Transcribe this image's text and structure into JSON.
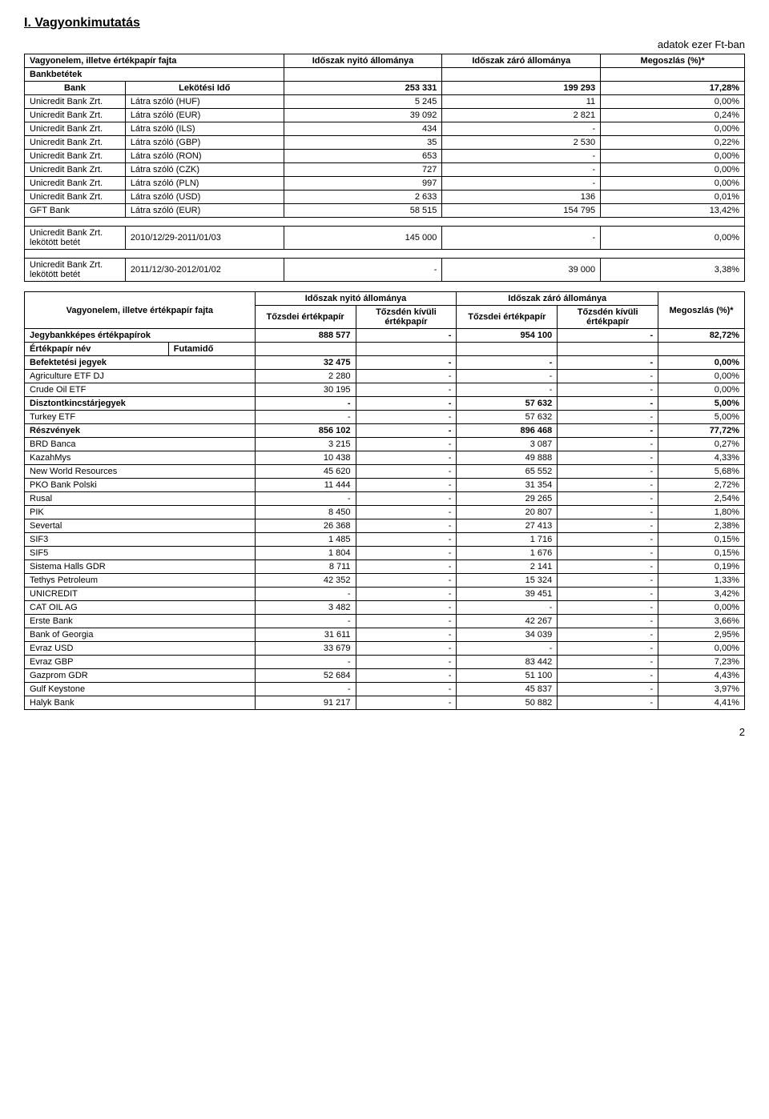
{
  "section_title": "I.   Vagyonkimutatás",
  "subtitle": "adatok ezer Ft-ban",
  "page_number": "2",
  "top_table": {
    "headers": [
      "Vagyonelem, illetve értékpapír fajta",
      "Időszak nyitó állománya",
      "Időszak záró állománya",
      "Megoszlás (%)*"
    ],
    "bank_header": "Bankbetétek",
    "col_bank": "Bank",
    "col_lekotesi": "Lekötési Idő",
    "sum_row": {
      "c1": "253 331",
      "c2": "199 293",
      "c3": "17,28%"
    },
    "rows": [
      {
        "bank": "Unicredit Bank Zrt.",
        "kind": "Látra szóló (HUF)",
        "v1": "5 245",
        "v2": "11",
        "v3": "0,00%"
      },
      {
        "bank": "Unicredit Bank Zrt.",
        "kind": "Látra szóló (EUR)",
        "v1": "39 092",
        "v2": "2 821",
        "v3": "0,24%"
      },
      {
        "bank": "Unicredit Bank Zrt.",
        "kind": "Látra szóló (ILS)",
        "v1": "434",
        "v2": "-",
        "v3": "0,00%"
      },
      {
        "bank": "Unicredit Bank Zrt.",
        "kind": "Látra szóló (GBP)",
        "v1": "35",
        "v2": "2 530",
        "v3": "0,22%"
      },
      {
        "bank": "Unicredit Bank Zrt.",
        "kind": "Látra szóló (RON)",
        "v1": "653",
        "v2": "-",
        "v3": "0,00%"
      },
      {
        "bank": "Unicredit Bank Zrt.",
        "kind": "Látra szóló (CZK)",
        "v1": "727",
        "v2": "-",
        "v3": "0,00%"
      },
      {
        "bank": "Unicredit Bank Zrt.",
        "kind": "Látra szóló (PLN)",
        "v1": "997",
        "v2": "-",
        "v3": "0,00%"
      },
      {
        "bank": "Unicredit Bank Zrt.",
        "kind": "Látra szóló (USD)",
        "v1": "2 633",
        "v2": "136",
        "v3": "0,01%"
      },
      {
        "bank": "GFT Bank",
        "kind": "Látra szóló (EUR)",
        "v1": "58 515",
        "v2": "154 795",
        "v3": "13,42%"
      }
    ],
    "lek1": {
      "bank": "Unicredit Bank Zrt. lekötött betét",
      "kind": "2010/12/29-2011/01/03",
      "v1": "145 000",
      "v2": "-",
      "v3": "0,00%"
    },
    "lek2": {
      "bank": "Unicredit Bank Zrt. lekötött betét",
      "kind": "2011/12/30-2012/01/02",
      "v1": "-",
      "v2": "39 000",
      "v3": "3,38%"
    }
  },
  "bottom_table": {
    "h_vagyonelem": "Vagyonelem, illetve értékpapír fajta",
    "h_nyito": "Időszak nyitó állománya",
    "h_zaro": "Időszak záró állománya",
    "h_megoszlas": "Megoszlás (%)*",
    "h_tozsdei": "Tőzsdei értékpapír",
    "h_tozsden": "Tőzsdén kívüli értékpapír",
    "jegy_row": {
      "name": "Jegybankképes értékpapírok",
      "c1": "888 577",
      "c2": "-",
      "c3": "954 100",
      "c4": "-",
      "c5": "82,72%"
    },
    "ertek_header": {
      "name": "Értékpapír név",
      "fut": "Futamidő"
    },
    "bef_row": {
      "name": "Befektetési jegyek",
      "c1": "32 475",
      "c2": "-",
      "c3": "-",
      "c4": "-",
      "c5": "0,00%"
    },
    "rows": [
      {
        "name": "Agriculture ETF DJ",
        "c1": "2 280",
        "c2": "-",
        "c3": "-",
        "c4": "-",
        "c5": "0,00%"
      },
      {
        "name": "Crude Oil ETF",
        "c1": "30 195",
        "c2": "-",
        "c3": "-",
        "c4": "-",
        "c5": "0,00%"
      },
      {
        "name": "Disztontkincstárjegyek",
        "bold": true,
        "c1": "-",
        "c2": "-",
        "c3": "57 632",
        "c4": "-",
        "c5": "5,00%"
      },
      {
        "name": "Turkey ETF",
        "c1": "-",
        "c2": "-",
        "c3": "57 632",
        "c4": "-",
        "c5": "5,00%"
      },
      {
        "name": "Részvények",
        "bold": true,
        "c1": "856 102",
        "c2": "-",
        "c3": "896 468",
        "c4": "-",
        "c5": "77,72%"
      },
      {
        "name": "BRD Banca",
        "c1": "3 215",
        "c2": "-",
        "c3": "3 087",
        "c4": "-",
        "c5": "0,27%"
      },
      {
        "name": "KazahMys",
        "c1": "10 438",
        "c2": "-",
        "c3": "49 888",
        "c4": "-",
        "c5": "4,33%"
      },
      {
        "name": "New World Resources",
        "c1": "45 620",
        "c2": "-",
        "c3": "65 552",
        "c4": "-",
        "c5": "5,68%"
      },
      {
        "name": "PKO Bank Polski",
        "c1": "11 444",
        "c2": "-",
        "c3": "31 354",
        "c4": "-",
        "c5": "2,72%"
      },
      {
        "name": "Rusal",
        "c1": "-",
        "c2": "-",
        "c3": "29 265",
        "c4": "-",
        "c5": "2,54%"
      },
      {
        "name": "PIK",
        "c1": "8 450",
        "c2": "-",
        "c3": "20 807",
        "c4": "-",
        "c5": "1,80%"
      },
      {
        "name": "Severtal",
        "c1": "26 368",
        "c2": "-",
        "c3": "27 413",
        "c4": "-",
        "c5": "2,38%"
      },
      {
        "name": "SIF3",
        "c1": "1 485",
        "c2": "-",
        "c3": "1 716",
        "c4": "-",
        "c5": "0,15%"
      },
      {
        "name": "SIF5",
        "c1": "1 804",
        "c2": "-",
        "c3": "1 676",
        "c4": "-",
        "c5": "0,15%"
      },
      {
        "name": "Sistema Halls GDR",
        "c1": "8 711",
        "c2": "-",
        "c3": "2 141",
        "c4": "-",
        "c5": "0,19%"
      },
      {
        "name": "Tethys Petroleum",
        "c1": "42 352",
        "c2": "-",
        "c3": "15 324",
        "c4": "-",
        "c5": "1,33%"
      },
      {
        "name": "UNICREDIT",
        "c1": "-",
        "c2": "-",
        "c3": "39 451",
        "c4": "-",
        "c5": "3,42%"
      },
      {
        "name": "CAT OIL AG",
        "c1": "3 482",
        "c2": "-",
        "c3": "-",
        "c4": "-",
        "c5": "0,00%"
      },
      {
        "name": "Erste Bank",
        "c1": "-",
        "c2": "-",
        "c3": "42 267",
        "c4": "-",
        "c5": "3,66%"
      },
      {
        "name": "Bank of Georgia",
        "c1": "31 611",
        "c2": "-",
        "c3": "34 039",
        "c4": "-",
        "c5": "2,95%"
      },
      {
        "name": "Evraz USD",
        "c1": "33 679",
        "c2": "-",
        "c3": "-",
        "c4": "-",
        "c5": "0,00%"
      },
      {
        "name": "Evraz GBP",
        "c1": "-",
        "c2": "-",
        "c3": "83 442",
        "c4": "-",
        "c5": "7,23%"
      },
      {
        "name": "Gazprom GDR",
        "c1": "52 684",
        "c2": "-",
        "c3": "51 100",
        "c4": "-",
        "c5": "4,43%"
      },
      {
        "name": "Gulf Keystone",
        "c1": "-",
        "c2": "-",
        "c3": "45 837",
        "c4": "-",
        "c5": "3,97%"
      },
      {
        "name": "Halyk Bank",
        "c1": "91 217",
        "c2": "-",
        "c3": "50 882",
        "c4": "-",
        "c5": "4,41%"
      }
    ]
  }
}
